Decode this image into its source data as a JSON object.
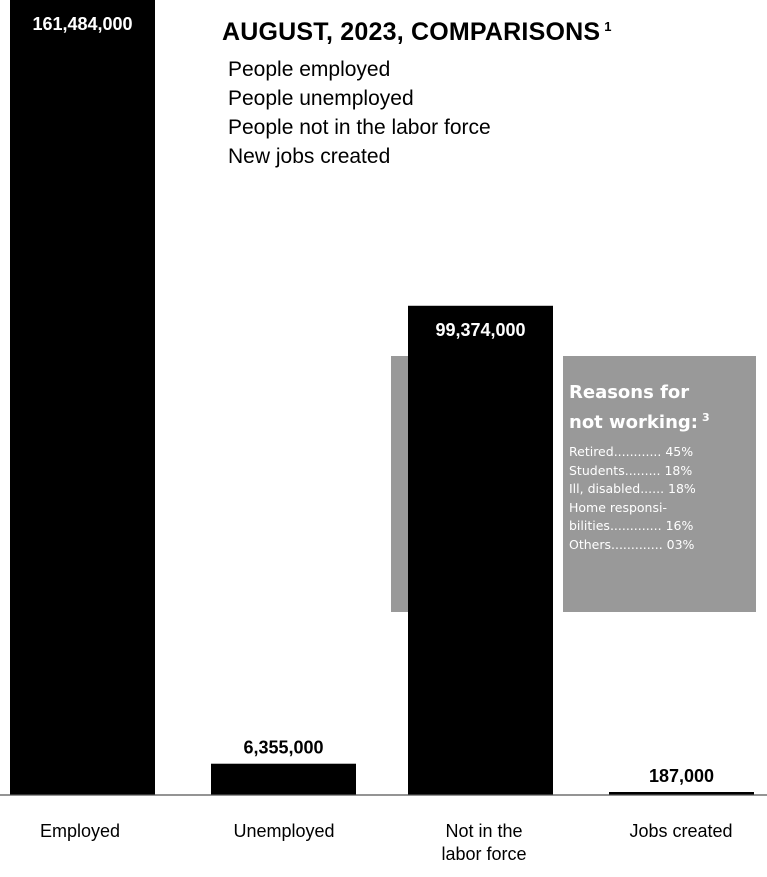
{
  "title": "AUGUST, 2023, COMPARISONS",
  "title_note": "1",
  "subtitle_lines": [
    "People employed",
    "People unemployed",
    "People not in the labor force",
    "New jobs created"
  ],
  "reasons": {
    "title_line1": "Reasons for",
    "title_line2": "not working:",
    "note": "3",
    "items": [
      {
        "label": "Retired",
        "dots": "............",
        "value": "45%"
      },
      {
        "label": "Students",
        "dots": ".........",
        "value": "18%"
      },
      {
        "label": "Ill, disabled",
        "dots": "......",
        "value": "18%"
      },
      {
        "label": "Home responsi-",
        "dots": "",
        "value": ""
      },
      {
        "label": "bilities",
        "dots": ".............",
        "value": "16%"
      },
      {
        "label": "Others",
        "dots": ".............",
        "value": "03%"
      }
    ]
  },
  "colors": {
    "bar": "#000000",
    "panel": "#999999",
    "axis": "#555555",
    "value_on_bar": "#ffffff",
    "value_above": "#000000"
  },
  "chart_data": {
    "type": "bar",
    "title": "AUGUST, 2023, COMPARISONS",
    "categories": [
      "Employed",
      "Unemployed",
      "Not in the labor force",
      "Jobs created"
    ],
    "category_labels": [
      [
        "Employed"
      ],
      [
        "Unemployed"
      ],
      [
        "Not in the",
        "labor force"
      ],
      [
        "Jobs created"
      ]
    ],
    "values": [
      161484000,
      6355000,
      99374000,
      187000
    ],
    "value_labels": [
      "161,484,000",
      "6,355,000",
      "99,374,000",
      "187,000"
    ],
    "ylim": [
      0,
      161484000
    ],
    "grid": false,
    "legend": "none"
  }
}
